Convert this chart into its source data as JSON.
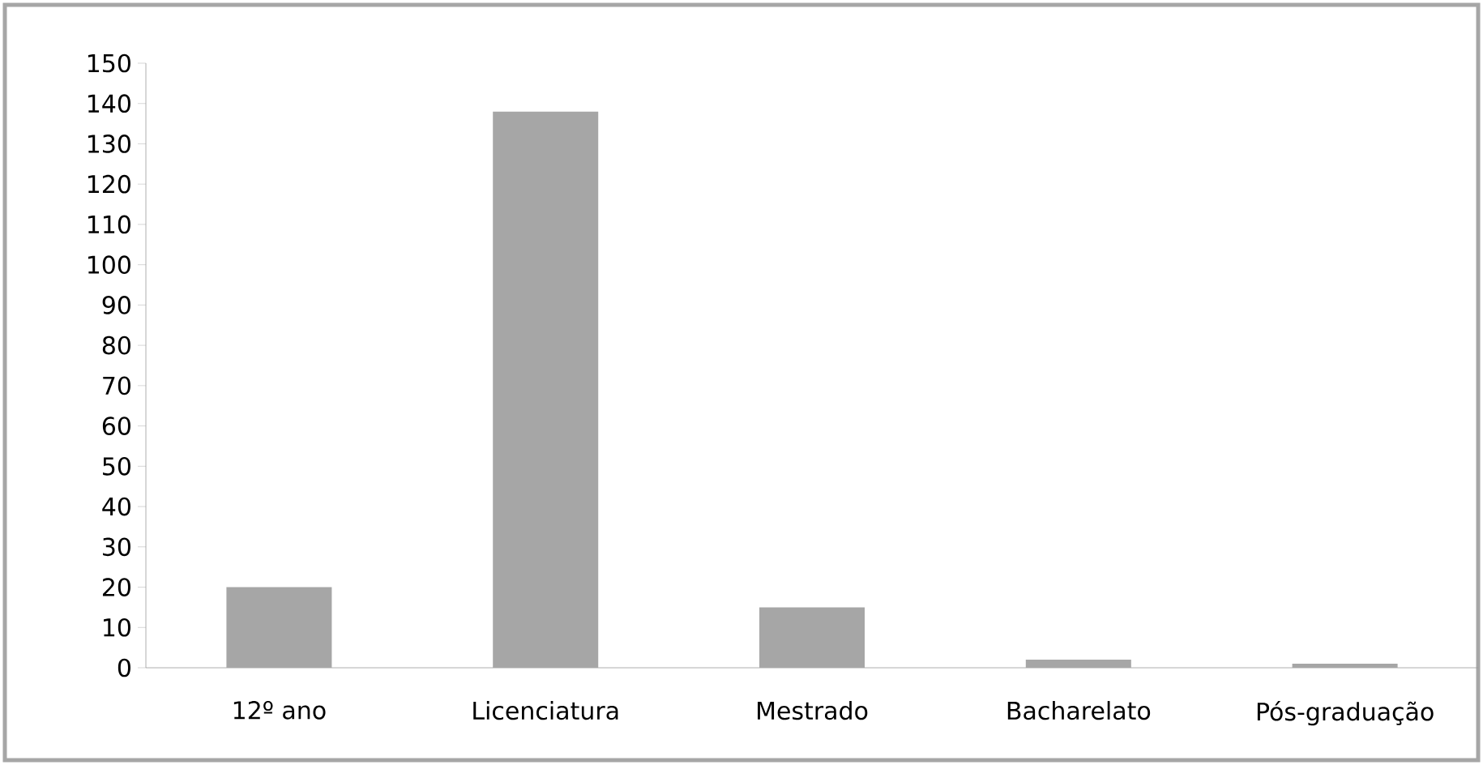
{
  "chart_data": {
    "type": "bar",
    "categories": [
      "12º ano",
      "Licenciatura",
      "Mestrado",
      "Bacharelato",
      "Pós-graduação"
    ],
    "values": [
      20,
      138,
      15,
      2,
      1
    ],
    "color": "#a6a6a6",
    "ylim": [
      0,
      150
    ],
    "yticks": [
      0,
      10,
      20,
      30,
      40,
      50,
      60,
      70,
      80,
      90,
      100,
      110,
      120,
      130,
      140,
      150
    ],
    "grid": false
  }
}
